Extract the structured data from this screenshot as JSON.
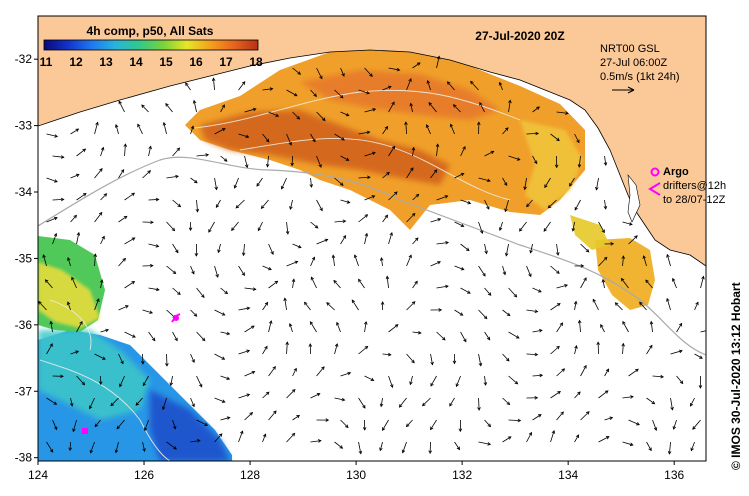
{
  "colorbar": {
    "title": "4h comp, p50, All Sats",
    "ticks": [
      "11",
      "12",
      "13",
      "14",
      "15",
      "16",
      "17",
      "18"
    ],
    "stops": [
      "#0a0a78",
      "#1432c8",
      "#1e78f0",
      "#28b4dc",
      "#32c88c",
      "#78d23c",
      "#e6e628",
      "#f5a01e",
      "#e6641e",
      "#b43214"
    ]
  },
  "map": {
    "date_label": "27-Jul-2020 20Z",
    "lon_ticks": [
      "124",
      "126",
      "128",
      "130",
      "132",
      "134",
      "136"
    ],
    "lat_ticks": [
      "-32",
      "-33",
      "-34",
      "-35",
      "-36",
      "-37",
      "-38"
    ],
    "lon_range": [
      124,
      136.6
    ],
    "lat_range": [
      -31.35,
      -38.05
    ],
    "land_color": "#fbc898",
    "ocean_color": "#ffffff"
  },
  "current_info": {
    "line1": "NRT00 GSL",
    "line2": "27-Jul 06:00Z",
    "line3": "0.5m/s (1kt 24h)"
  },
  "argo_legend": {
    "label": "Argo",
    "line2": "drifters@12h",
    "line3": "to 28/07-12Z",
    "marker_color": "#ff00ff"
  },
  "credit": "© IMOS 30-Jul-2020 13:12 Hobart"
}
